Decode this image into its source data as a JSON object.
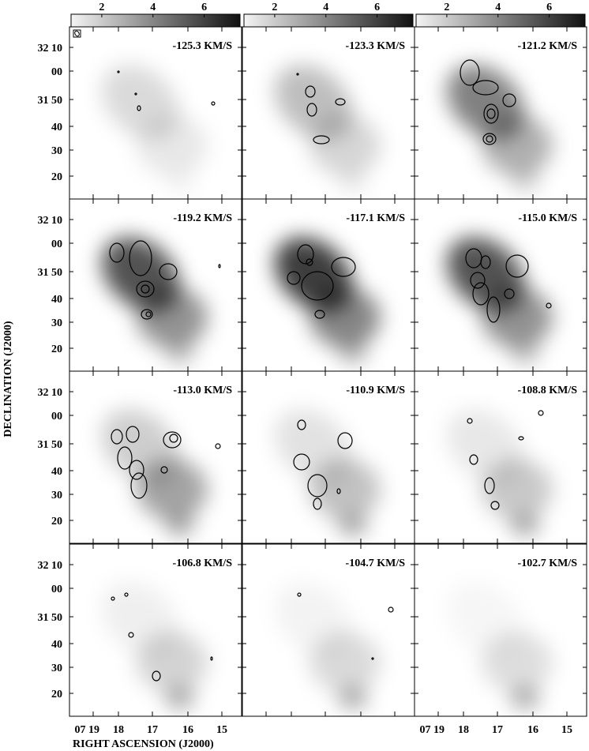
{
  "colorbar": {
    "lim": [
      0.8,
      7.4
    ],
    "ticks": [
      2,
      4,
      6
    ]
  },
  "panels": [
    {
      "label": "-125.3 KM/S"
    },
    {
      "label": "-123.3 KM/S"
    },
    {
      "label": "-121.2 KM/S"
    },
    {
      "label": "-119.2 KM/S"
    },
    {
      "label": "-117.1 KM/S"
    },
    {
      "label": "-115.0 KM/S"
    },
    {
      "label": "-113.0 KM/S"
    },
    {
      "label": "-110.9 KM/S"
    },
    {
      "label": "-108.8 KM/S"
    },
    {
      "label": "-106.8 KM/S"
    },
    {
      "label": "-104.7 KM/S"
    },
    {
      "label": "-102.7 KM/S"
    }
  ],
  "y_ticks": [
    "32 10",
    "00",
    "31 50",
    "40",
    "30",
    "20"
  ],
  "x_ticks": [
    "07 19",
    "18",
    "17",
    "16",
    "15"
  ],
  "x_axis_label": "RIGHT ASCENSION (J2000)",
  "y_axis_label": "DECLINATION (J2000)"
}
